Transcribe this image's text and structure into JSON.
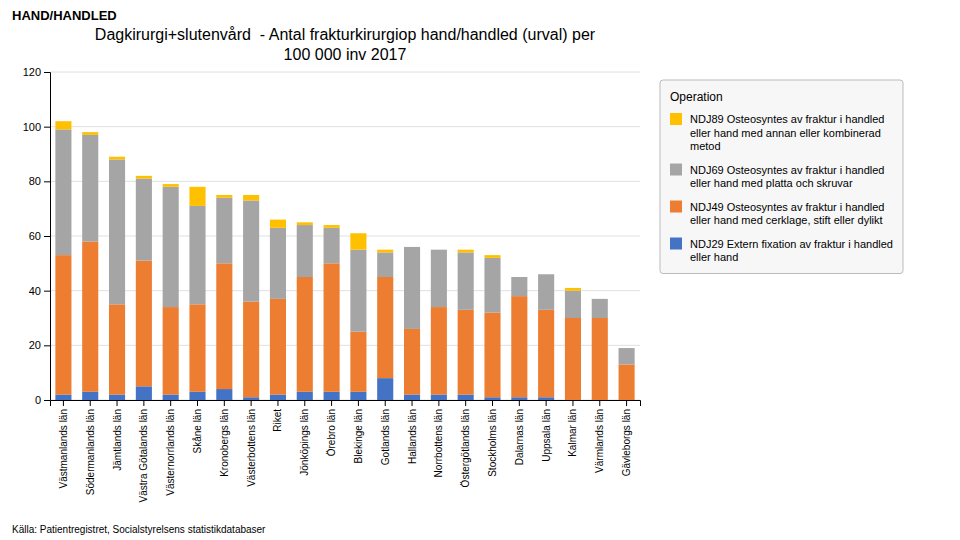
{
  "chart_data": {
    "type": "bar",
    "stacked": true,
    "title": "Dagkirurgi+slutenvård  - Antal frakturkirurgiop hand/handled (urval) per\n100 000 inv 2017",
    "subtitle": "HAND/HANDLED",
    "annotations": [
      "Källa: Patientregistret, Socialstyrelsens statistikdatabaser"
    ],
    "categories": [
      "Västmanlands län",
      "Södermanlands län",
      "Jämtlands län",
      "Västra Götalands län",
      "Västernorrlands län",
      "Skåne län",
      "Kronobergs län",
      "Västerbottens län",
      "Riket",
      "Jönköpings län",
      "Örebro län",
      "Blekinge län",
      "Gotlands län",
      "Hallands län",
      "Norrbottens län",
      "Östergötlands län",
      "Stockholms län",
      "Dalarnas län",
      "Uppsala län",
      "Kalmar län",
      "Värmlands län",
      "Gävleborgs län"
    ],
    "series": [
      {
        "name": "NDJ29 Extern fixation av fraktur i handled\neller hand",
        "color": "#4472C4",
        "values": [
          2,
          3,
          2,
          5,
          2,
          3,
          4,
          1,
          2,
          3,
          3,
          3,
          8,
          2,
          2,
          2,
          1,
          1,
          1,
          0,
          0,
          0
        ]
      },
      {
        "name": "NDJ49 Osteosyntes av fraktur i handled\neller hand med cerklage, stift eller dylikt",
        "color": "#ED7D31",
        "values": [
          51,
          55,
          33,
          46,
          32,
          32,
          46,
          35,
          35,
          42,
          47,
          22,
          37,
          24,
          32,
          31,
          31,
          37,
          32,
          30,
          30,
          13
        ]
      },
      {
        "name": "NDJ69 Osteosyntes av fraktur i handled\neller hand med platta och skruvar",
        "color": "#A5A5A5",
        "values": [
          46,
          39,
          53,
          30,
          44,
          36,
          24,
          37,
          26,
          19,
          13,
          30,
          9,
          30,
          21,
          21,
          20,
          7,
          13,
          10,
          7,
          6
        ]
      },
      {
        "name": "NDJ89 Osteosyntes av fraktur i handled\neller hand med annan eller kombinerad\nmetod",
        "color": "#FFC000",
        "values": [
          3,
          1,
          1,
          1,
          1,
          7,
          1,
          2,
          3,
          1,
          1,
          6,
          1,
          0,
          0,
          1,
          1,
          0,
          0,
          1,
          0,
          0
        ]
      }
    ],
    "legend_title": "Operation",
    "legend": "upper right",
    "ylim": [
      0,
      120
    ],
    "yticks": [
      0,
      20,
      40,
      60,
      80,
      100,
      120
    ],
    "grid": true
  }
}
